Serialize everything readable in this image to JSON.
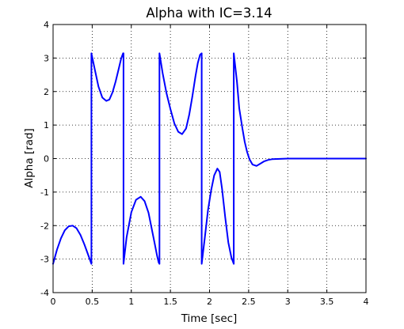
{
  "chart_data": {
    "type": "line",
    "title": "Alpha with IC=3.14",
    "xlabel": "Time [sec]",
    "ylabel": "Alpha [rad]",
    "xlim": [
      0,
      4
    ],
    "ylim": [
      -4,
      4
    ],
    "xticks": [
      0,
      0.5,
      1,
      1.5,
      2,
      2.5,
      3,
      3.5,
      4
    ],
    "xtick_labels": [
      "0",
      "0.5",
      "1",
      "1.5",
      "2",
      "2.5",
      "3",
      "3.5",
      "4"
    ],
    "yticks": [
      -4,
      -3,
      -2,
      -1,
      0,
      1,
      2,
      3,
      4
    ],
    "ytick_labels": [
      "-4",
      "-3",
      "-2",
      "-1",
      "0",
      "1",
      "2",
      "3",
      "4"
    ],
    "grid": true,
    "grid_style": "dotted",
    "box": true,
    "series": [
      {
        "color": "#0000ff",
        "x": [
          0,
          0.05,
          0.1,
          0.15,
          0.2,
          0.25,
          0.3,
          0.35,
          0.4,
          0.45,
          0.49,
          0.49,
          0.53,
          0.58,
          0.63,
          0.68,
          0.72,
          0.76,
          0.8,
          0.84,
          0.87,
          0.895,
          0.9,
          0.9,
          0.94,
          1.0,
          1.06,
          1.12,
          1.17,
          1.22,
          1.26,
          1.3,
          1.33,
          1.35,
          1.36,
          1.36,
          1.4,
          1.45,
          1.5,
          1.55,
          1.6,
          1.65,
          1.7,
          1.74,
          1.78,
          1.82,
          1.85,
          1.88,
          1.9,
          1.9,
          1.94,
          1.98,
          2.02,
          2.06,
          2.1,
          2.13,
          2.16,
          2.2,
          2.24,
          2.28,
          2.31,
          2.31,
          2.35,
          2.38,
          2.42,
          2.45,
          2.48,
          2.51,
          2.55,
          2.6,
          2.65,
          2.7,
          2.75,
          2.8,
          2.9,
          3.0,
          3.2,
          3.5,
          4.0
        ],
        "y": [
          -3.14,
          -2.72,
          -2.38,
          -2.14,
          -2.02,
          -2.0,
          -2.08,
          -2.28,
          -2.56,
          -2.88,
          -3.14,
          3.14,
          2.7,
          2.15,
          1.82,
          1.72,
          1.76,
          1.98,
          2.3,
          2.68,
          2.98,
          3.14,
          3.14,
          -3.14,
          -2.35,
          -1.6,
          -1.23,
          -1.14,
          -1.27,
          -1.62,
          -2.08,
          -2.55,
          -2.9,
          -3.1,
          -3.14,
          3.14,
          2.55,
          1.95,
          1.48,
          1.05,
          0.8,
          0.73,
          0.9,
          1.3,
          1.85,
          2.45,
          2.85,
          3.1,
          3.14,
          -3.14,
          -2.35,
          -1.55,
          -0.95,
          -0.5,
          -0.3,
          -0.4,
          -0.9,
          -1.75,
          -2.5,
          -2.95,
          -3.14,
          3.14,
          2.3,
          1.5,
          0.9,
          0.5,
          0.2,
          -0.02,
          -0.18,
          -0.22,
          -0.15,
          -0.08,
          -0.04,
          -0.02,
          -0.01,
          0.0,
          0.0,
          0.0,
          0.0
        ]
      }
    ]
  }
}
